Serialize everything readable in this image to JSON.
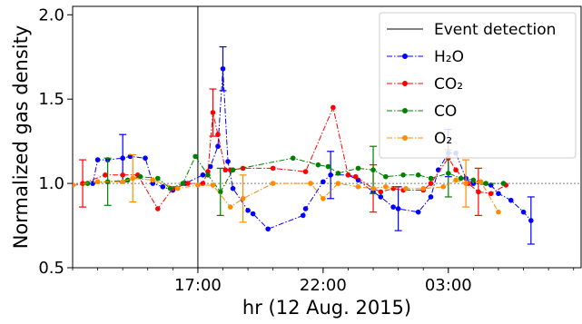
{
  "chart_data": {
    "type": "line",
    "xlabel": "hr (12 Aug. 2015)",
    "ylabel": "Normalized gas density",
    "x_unit": "hours",
    "xlim": [
      12.0,
      8.3
    ],
    "xlim_note": "",
    "x_range_hours": [
      12.0,
      32.3
    ],
    "ylim": [
      0.5,
      2.05
    ],
    "x_ticks": [
      {
        "value": 17.0,
        "label": "17:00"
      },
      {
        "value": 22.0,
        "label": "22:00"
      },
      {
        "value": 27.0,
        "label": "03:00"
      }
    ],
    "y_ticks": [
      {
        "value": 0.5,
        "label": "0.5"
      },
      {
        "value": 1.0,
        "label": "1.0"
      },
      {
        "value": 1.5,
        "label": "1.5"
      },
      {
        "value": 2.0,
        "label": "2.0"
      }
    ],
    "reference_line": 1.0,
    "event_detection_x": 17.0,
    "legend_placement": "top-right",
    "series": [
      {
        "name": "H₂O",
        "color": "#0000ff",
        "points": [
          [
            12.0,
            0.99
          ],
          [
            12.8,
            1.0
          ],
          [
            13.0,
            1.14
          ],
          [
            13.4,
            1.14
          ],
          [
            14.0,
            1.15
          ],
          [
            14.3,
            1.16
          ],
          [
            14.9,
            1.15
          ],
          [
            15.2,
            1.0
          ],
          [
            15.6,
            0.98
          ],
          [
            16.0,
            0.96
          ],
          [
            16.5,
            1.0
          ],
          [
            17.2,
            1.05
          ],
          [
            17.5,
            1.1
          ],
          [
            17.8,
            1.22
          ],
          [
            18.0,
            1.68
          ],
          [
            18.2,
            1.13
          ],
          [
            18.4,
            0.97
          ],
          [
            19.0,
            0.84
          ],
          [
            19.2,
            0.82
          ],
          [
            19.8,
            0.73
          ],
          [
            21.2,
            0.81
          ],
          [
            21.3,
            0.85
          ],
          [
            22.0,
            1.01
          ],
          [
            22.3,
            1.05
          ],
          [
            23.0,
            1.05
          ],
          [
            23.4,
            1.02
          ],
          [
            24.0,
            0.95
          ],
          [
            24.3,
            0.92
          ],
          [
            24.8,
            0.86
          ],
          [
            25.0,
            0.85
          ],
          [
            25.8,
            0.83
          ],
          [
            26.3,
            0.92
          ],
          [
            26.6,
            1.08
          ],
          [
            27.0,
            1.18
          ],
          [
            27.3,
            1.18
          ],
          [
            27.7,
            1.03
          ],
          [
            28.0,
            1.0
          ],
          [
            28.7,
            0.99
          ],
          [
            29.0,
            0.94
          ],
          [
            29.5,
            0.9
          ],
          [
            30.0,
            0.83
          ],
          [
            30.3,
            0.78
          ]
        ],
        "error_bars": [
          [
            14.0,
            1.15,
            0.14
          ],
          [
            18.0,
            1.68,
            0.13
          ],
          [
            22.3,
            1.05,
            0.14
          ],
          [
            25.0,
            0.85,
            0.13
          ],
          [
            27.0,
            1.18,
            0.14
          ],
          [
            30.3,
            0.78,
            0.14
          ]
        ]
      },
      {
        "name": "CO₂",
        "color": "#ff0000",
        "points": [
          [
            12.0,
            0.99
          ],
          [
            12.4,
            1.0
          ],
          [
            13.3,
            1.05
          ],
          [
            14.0,
            1.05
          ],
          [
            14.6,
            1.05
          ],
          [
            15.4,
            0.85
          ],
          [
            16.0,
            0.97
          ],
          [
            16.6,
            1.0
          ],
          [
            17.2,
            1.0
          ],
          [
            17.4,
            1.07
          ],
          [
            17.6,
            1.42
          ],
          [
            17.8,
            1.29
          ],
          [
            18.1,
            1.08
          ],
          [
            18.3,
            1.08
          ],
          [
            18.8,
            1.09
          ],
          [
            20.0,
            1.09
          ],
          [
            21.3,
            1.07
          ],
          [
            22.4,
            1.45
          ],
          [
            23.0,
            1.05
          ],
          [
            23.3,
            1.04
          ],
          [
            24.0,
            0.97
          ],
          [
            24.3,
            0.95
          ],
          [
            24.8,
            0.97
          ],
          [
            25.2,
            0.96
          ],
          [
            26.0,
            0.96
          ],
          [
            26.3,
            1.0
          ],
          [
            27.0,
            1.15
          ],
          [
            27.3,
            1.08
          ],
          [
            27.8,
            1.0
          ],
          [
            28.2,
            0.95
          ],
          [
            28.7,
            0.94
          ],
          [
            29.3,
            0.99
          ]
        ],
        "error_bars": [
          [
            12.4,
            1.0,
            0.14
          ],
          [
            17.6,
            1.42,
            0.14
          ],
          [
            24.0,
            0.97,
            0.14
          ],
          [
            28.2,
            0.95,
            0.14
          ]
        ]
      },
      {
        "name": "CO",
        "color": "#008000",
        "points": [
          [
            12.0,
            0.99
          ],
          [
            12.6,
            1.0
          ],
          [
            13.4,
            1.01
          ],
          [
            14.2,
            1.02
          ],
          [
            14.7,
            1.04
          ],
          [
            15.4,
            1.03
          ],
          [
            15.9,
            0.97
          ],
          [
            16.4,
            1.0
          ],
          [
            16.9,
            1.16
          ],
          [
            17.4,
            1.05
          ],
          [
            17.9,
            0.95
          ],
          [
            18.4,
            1.08
          ],
          [
            20.8,
            1.15
          ],
          [
            21.8,
            1.11
          ],
          [
            22.2,
            1.1
          ],
          [
            22.6,
            1.06
          ],
          [
            23.4,
            1.09
          ],
          [
            24.0,
            1.08
          ],
          [
            24.5,
            1.04
          ],
          [
            25.2,
            1.05
          ],
          [
            25.8,
            1.05
          ],
          [
            26.3,
            1.03
          ],
          [
            27.0,
            1.06
          ],
          [
            27.5,
            1.03
          ],
          [
            28.0,
            1.02
          ],
          [
            28.5,
            1.0
          ],
          [
            29.2,
            1.0
          ]
        ],
        "error_bars": [
          [
            13.4,
            1.01,
            0.14
          ],
          [
            17.9,
            0.95,
            0.14
          ],
          [
            24.0,
            1.08,
            0.14
          ],
          [
            27.0,
            1.06,
            0.14
          ]
        ]
      },
      {
        "name": "O₂",
        "color": "#ff8c00",
        "points": [
          [
            12.0,
            0.99
          ],
          [
            13.0,
            1.01
          ],
          [
            14.0,
            1.01
          ],
          [
            14.4,
            1.03
          ],
          [
            15.2,
            1.02
          ],
          [
            16.2,
            0.97
          ],
          [
            17.0,
            0.99
          ],
          [
            17.6,
            0.99
          ],
          [
            18.3,
            0.86
          ],
          [
            18.8,
            0.91
          ],
          [
            20.0,
            1.0
          ],
          [
            21.5,
            1.0
          ],
          [
            22.0,
            0.91
          ],
          [
            22.6,
            1.0
          ],
          [
            23.4,
            0.98
          ],
          [
            24.0,
            0.97
          ],
          [
            24.5,
            0.98
          ],
          [
            25.3,
            0.97
          ],
          [
            26.0,
            0.97
          ],
          [
            26.8,
            0.98
          ],
          [
            27.3,
            1.02
          ],
          [
            27.7,
            1.0
          ],
          [
            28.3,
            1.01
          ],
          [
            29.0,
            0.83
          ]
        ],
        "error_bars": [
          [
            14.4,
            1.03,
            0.14
          ],
          [
            18.8,
            0.91,
            0.14
          ],
          [
            27.7,
            1.0,
            0.14
          ]
        ]
      }
    ],
    "legend": [
      {
        "label": "Event detection",
        "kind": "solid-line",
        "color": "#000000"
      },
      {
        "label": "H₂O",
        "kind": "dashdot-marker",
        "color": "#0000ff"
      },
      {
        "label": "CO₂",
        "kind": "dashdot-marker",
        "color": "#ff0000"
      },
      {
        "label": "CO",
        "kind": "dashdot-marker",
        "color": "#008000"
      },
      {
        "label": "O₂",
        "kind": "dashdot-marker",
        "color": "#ff8c00"
      }
    ]
  }
}
